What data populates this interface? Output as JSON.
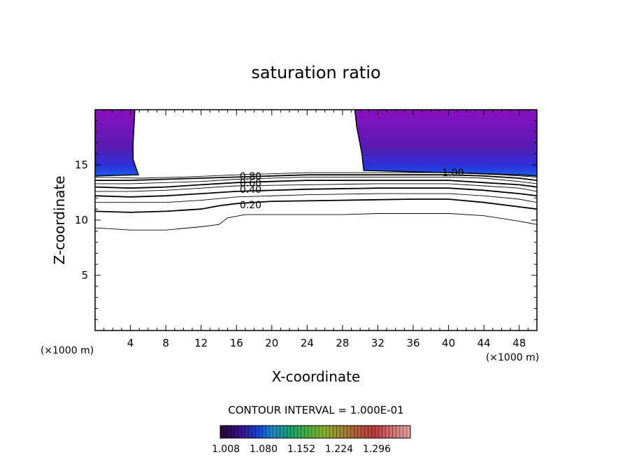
{
  "chart_data": {
    "type": "contour",
    "title": "saturation ratio",
    "xlabel": "X-coordinate",
    "ylabel": "Z-coordinate",
    "x_unit": "(×1000 m)",
    "z_unit": "(×1000 m)",
    "xlim": [
      0,
      50
    ],
    "ylim": [
      0,
      20
    ],
    "x_ticks": [
      4,
      8,
      12,
      16,
      20,
      24,
      28,
      32,
      36,
      40,
      44,
      48
    ],
    "y_ticks": [
      5,
      10,
      15
    ],
    "contour_interval_text": "CONTOUR INTERVAL = 1.000E-01",
    "contour_labels": [
      {
        "text": "0.80",
        "x": 17.6,
        "z": 14.0
      },
      {
        "text": "0.60",
        "x": 17.6,
        "z": 13.4
      },
      {
        "text": "0.40",
        "x": 17.6,
        "z": 12.8
      },
      {
        "text": "0.20",
        "x": 17.6,
        "z": 11.4
      },
      {
        "text": "1.00",
        "x": 40.5,
        "z": 14.3
      }
    ],
    "contour_lines": [
      {
        "level": 0.1,
        "points": [
          [
            0,
            9.3
          ],
          [
            4,
            9.1
          ],
          [
            8,
            9.1
          ],
          [
            12,
            9.4
          ],
          [
            14,
            9.6
          ],
          [
            15,
            10.2
          ],
          [
            17,
            10.5
          ],
          [
            24,
            10.5
          ],
          [
            28,
            10.5
          ],
          [
            32,
            10.6
          ],
          [
            40,
            10.6
          ],
          [
            44,
            10.4
          ],
          [
            48,
            9.9
          ],
          [
            50,
            9.6
          ]
        ]
      },
      {
        "level": 0.2,
        "points": [
          [
            0,
            10.8
          ],
          [
            4,
            10.7
          ],
          [
            8,
            10.8
          ],
          [
            12,
            11.0
          ],
          [
            14,
            11.3
          ],
          [
            16,
            11.5
          ],
          [
            20,
            11.7
          ],
          [
            28,
            11.8
          ],
          [
            36,
            11.9
          ],
          [
            40,
            11.9
          ],
          [
            44,
            11.6
          ],
          [
            48,
            11.2
          ],
          [
            50,
            11.0
          ]
        ]
      },
      {
        "level": 0.3,
        "points": [
          [
            0,
            11.6
          ],
          [
            4,
            11.6
          ],
          [
            8,
            11.6
          ],
          [
            12,
            11.8
          ],
          [
            16,
            12.1
          ],
          [
            24,
            12.3
          ],
          [
            32,
            12.4
          ],
          [
            40,
            12.4
          ],
          [
            44,
            12.2
          ],
          [
            48,
            11.9
          ],
          [
            50,
            11.6
          ]
        ]
      },
      {
        "level": 0.4,
        "points": [
          [
            0,
            12.2
          ],
          [
            4,
            12.1
          ],
          [
            8,
            12.2
          ],
          [
            12,
            12.4
          ],
          [
            16,
            12.6
          ],
          [
            24,
            12.8
          ],
          [
            32,
            12.9
          ],
          [
            40,
            12.9
          ],
          [
            44,
            12.7
          ],
          [
            48,
            12.4
          ],
          [
            50,
            12.2
          ]
        ]
      },
      {
        "level": 0.5,
        "points": [
          [
            0,
            12.6
          ],
          [
            4,
            12.6
          ],
          [
            8,
            12.7
          ],
          [
            12,
            12.9
          ],
          [
            16,
            13.1
          ],
          [
            24,
            13.2
          ],
          [
            32,
            13.3
          ],
          [
            40,
            13.3
          ],
          [
            44,
            13.1
          ],
          [
            48,
            12.9
          ],
          [
            50,
            12.6
          ]
        ]
      },
      {
        "level": 0.6,
        "points": [
          [
            0,
            13.0
          ],
          [
            4,
            12.9
          ],
          [
            8,
            13.0
          ],
          [
            12,
            13.2
          ],
          [
            16,
            13.4
          ],
          [
            24,
            13.6
          ],
          [
            32,
            13.6
          ],
          [
            40,
            13.6
          ],
          [
            44,
            13.4
          ],
          [
            48,
            13.2
          ],
          [
            50,
            13.0
          ]
        ]
      },
      {
        "level": 0.7,
        "points": [
          [
            0,
            13.3
          ],
          [
            4,
            13.3
          ],
          [
            8,
            13.4
          ],
          [
            12,
            13.5
          ],
          [
            16,
            13.7
          ],
          [
            24,
            13.9
          ],
          [
            32,
            13.9
          ],
          [
            40,
            13.9
          ],
          [
            44,
            13.8
          ],
          [
            48,
            13.5
          ],
          [
            50,
            13.3
          ]
        ]
      },
      {
        "level": 0.8,
        "points": [
          [
            0,
            13.6
          ],
          [
            4,
            13.6
          ],
          [
            8,
            13.7
          ],
          [
            12,
            13.8
          ],
          [
            16,
            13.9
          ],
          [
            24,
            14.1
          ],
          [
            32,
            14.1
          ],
          [
            40,
            14.1
          ],
          [
            44,
            14.0
          ],
          [
            48,
            13.8
          ],
          [
            50,
            13.6
          ]
        ]
      },
      {
        "level": 0.9,
        "points": [
          [
            0,
            13.9
          ],
          [
            5,
            13.8
          ],
          [
            10,
            13.9
          ],
          [
            16,
            14.1
          ],
          [
            24,
            14.3
          ],
          [
            32,
            14.3
          ],
          [
            40,
            14.3
          ],
          [
            46,
            14.1
          ],
          [
            50,
            13.9
          ]
        ]
      }
    ],
    "filled_regions": [
      {
        "name": "left",
        "points": [
          [
            0,
            20
          ],
          [
            4.5,
            20
          ],
          [
            4.3,
            17
          ],
          [
            4.3,
            15.5
          ],
          [
            4.9,
            14.1
          ],
          [
            0,
            14.0
          ]
        ]
      },
      {
        "name": "right",
        "points": [
          [
            29.4,
            20
          ],
          [
            50,
            20
          ],
          [
            50,
            14.0
          ],
          [
            48,
            14.1
          ],
          [
            44,
            14.2
          ],
          [
            40,
            14.3
          ],
          [
            35,
            14.4
          ],
          [
            30.4,
            14.5
          ],
          [
            30.2,
            16.0
          ],
          [
            29.6,
            18.5
          ]
        ]
      }
    ],
    "colorbar": {
      "tick_labels": [
        "1.008",
        "1.080",
        "1.152",
        "1.224",
        "1.296"
      ],
      "colors": [
        "#2a0a3a",
        "#3a1080",
        "#1a3ad0",
        "#1a8ac8",
        "#1aa070",
        "#48b040",
        "#8ab030",
        "#a08a30",
        "#b05a3a",
        "#c03a40",
        "#d07070",
        "#e0a0a0"
      ]
    },
    "fill_colors": {
      "top": "#8a10c0",
      "mid": "#5a1ab0",
      "low": "#2a30d8",
      "edge": "#1a60f0"
    }
  }
}
